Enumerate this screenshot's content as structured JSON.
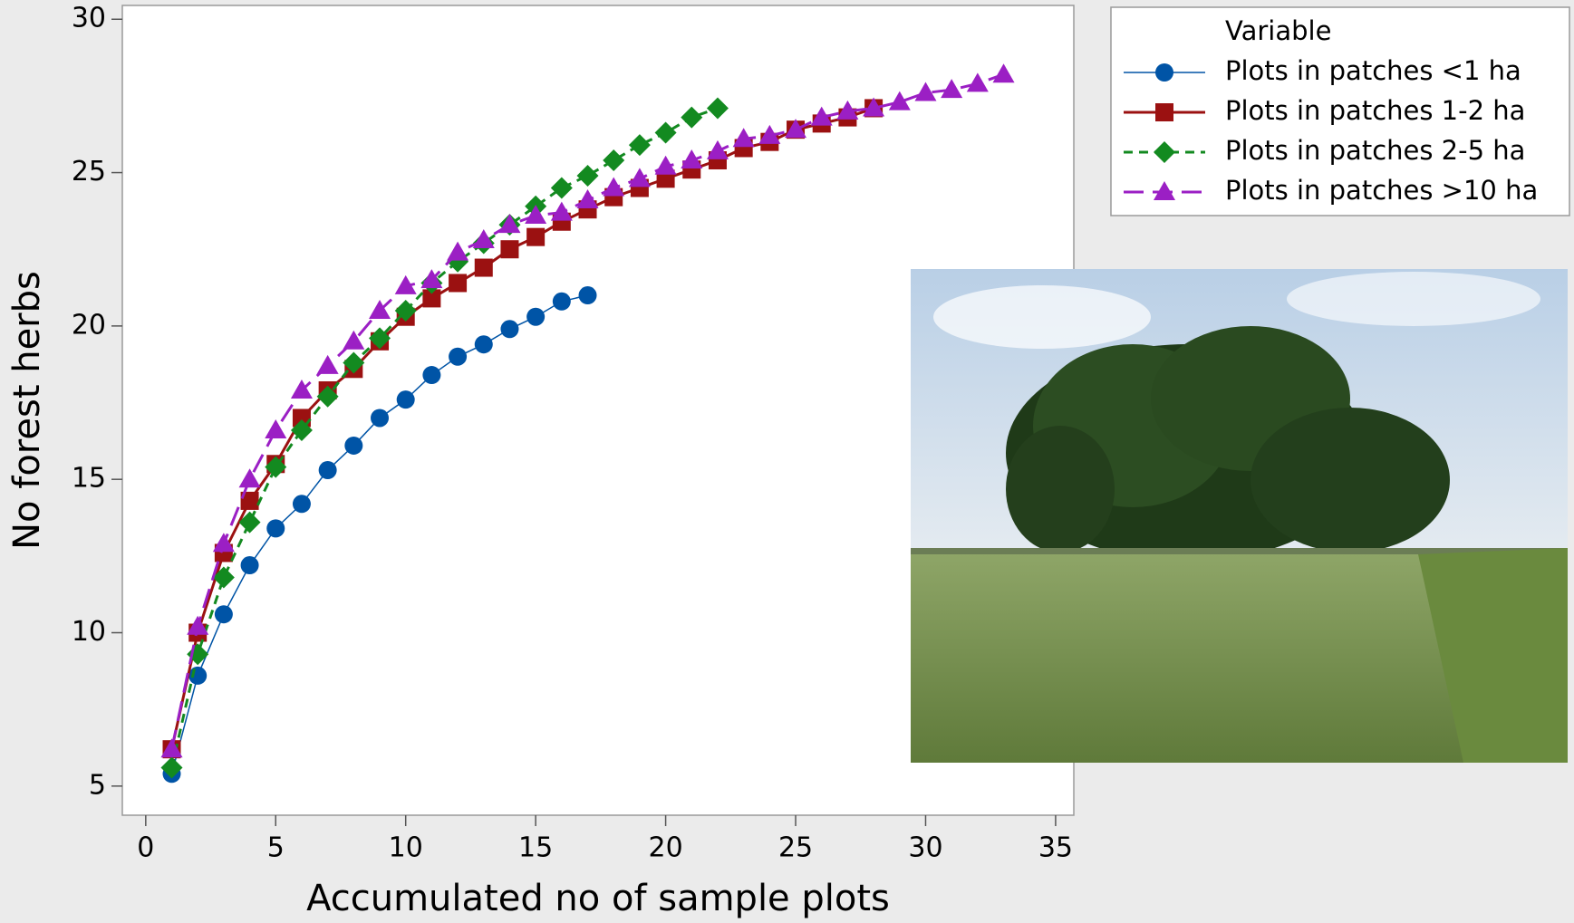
{
  "chart_data": {
    "type": "line",
    "xlabel": "Accumulated no of sample plots",
    "ylabel": "No forest herbs",
    "legend_title": "Variable",
    "legend": "upper right",
    "xlim": [
      -0.9,
      35.7
    ],
    "ylim": [
      4.05,
      30.45
    ],
    "xticks": [
      0,
      5,
      10,
      15,
      20,
      25,
      30,
      35
    ],
    "yticks": [
      5,
      10,
      15,
      20,
      25,
      30
    ],
    "series": [
      {
        "name": "Plots in patches <1 ha",
        "color": "#0054a6",
        "marker": "circle",
        "dash": "solid",
        "x": [
          1,
          2,
          3,
          4,
          5,
          6,
          7,
          8,
          9,
          10,
          11,
          12,
          13,
          14,
          15,
          16,
          17
        ],
        "values": [
          5.4,
          8.6,
          10.6,
          12.2,
          13.4,
          14.2,
          15.3,
          16.1,
          17.0,
          17.6,
          18.4,
          19.0,
          19.4,
          19.9,
          20.3,
          20.8,
          21.0
        ]
      },
      {
        "name": "Plots in patches 1-2 ha",
        "color": "#9b1111",
        "marker": "square",
        "dash": "solid",
        "x": [
          1,
          2,
          3,
          4,
          5,
          6,
          7,
          8,
          9,
          10,
          11,
          12,
          13,
          14,
          15,
          16,
          17,
          18,
          19,
          20,
          21,
          22,
          23,
          24,
          25,
          26,
          27,
          28
        ],
        "values": [
          6.2,
          10.0,
          12.6,
          14.3,
          15.5,
          17.0,
          17.9,
          18.6,
          19.5,
          20.3,
          20.9,
          21.4,
          21.9,
          22.5,
          22.9,
          23.4,
          23.8,
          24.2,
          24.5,
          24.8,
          25.1,
          25.4,
          25.8,
          26.0,
          26.4,
          26.6,
          26.8,
          27.1
        ]
      },
      {
        "name": "Plots in patches 2-5 ha",
        "color": "#138a20",
        "marker": "diamond",
        "dash": "dashed",
        "x": [
          1,
          2,
          3,
          4,
          5,
          6,
          7,
          8,
          9,
          10,
          11,
          12,
          13,
          14,
          15,
          16,
          17,
          18,
          19,
          20,
          21,
          22
        ],
        "values": [
          5.6,
          9.3,
          11.8,
          13.6,
          15.4,
          16.6,
          17.7,
          18.8,
          19.6,
          20.5,
          21.4,
          22.1,
          22.7,
          23.3,
          23.9,
          24.5,
          24.9,
          25.4,
          25.9,
          26.3,
          26.8,
          27.1
        ]
      },
      {
        "name": "Plots in patches >10 ha",
        "color": "#9b1fc4",
        "marker": "triangle",
        "dash": "longdash",
        "x": [
          1,
          2,
          3,
          4,
          5,
          6,
          7,
          8,
          9,
          10,
          11,
          12,
          13,
          14,
          15,
          16,
          17,
          18,
          19,
          20,
          21,
          22,
          23,
          24,
          25,
          26,
          27,
          28,
          29,
          30,
          31,
          32,
          33
        ],
        "values": [
          6.2,
          10.2,
          12.9,
          15.0,
          16.6,
          17.9,
          18.7,
          19.5,
          20.5,
          21.3,
          21.5,
          22.4,
          22.8,
          23.3,
          23.6,
          23.7,
          24.1,
          24.5,
          24.8,
          25.2,
          25.4,
          25.7,
          26.1,
          26.2,
          26.4,
          26.8,
          27.0,
          27.1,
          27.3,
          27.6,
          27.7,
          27.9,
          28.2
        ]
      }
    ]
  }
}
